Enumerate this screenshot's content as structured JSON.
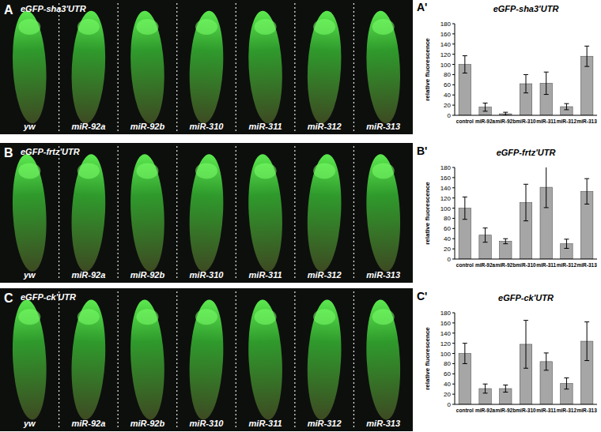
{
  "image_panels": [
    {
      "letter": "A",
      "title": "eGFP-sha3'UTR",
      "labels": [
        "yw",
        "miR-92a",
        "miR-92b",
        "miR-310",
        "miR-311",
        "miR-312",
        "miR-313"
      ]
    },
    {
      "letter": "B",
      "title": "eGFP-frtz'UTR",
      "labels": [
        "yw",
        "miR-92a",
        "miR-92b",
        "miR-310",
        "miR-311",
        "miR-312",
        "miR-313"
      ]
    },
    {
      "letter": "C",
      "title": "eGFP-ck'UTR",
      "labels": [
        "yw",
        "miR-92a",
        "miR-92b",
        "miR-310",
        "miR-311",
        "miR-312",
        "miR-313"
      ]
    }
  ],
  "chart_data": [
    {
      "type": "bar",
      "panel": "A'",
      "title": "eGFP-sha3'UTR",
      "y_label": "relative fluorescence",
      "categories": [
        "control",
        "miR-92a",
        "miR-92b",
        "miR-310",
        "miR-311",
        "miR-312",
        "miR-313"
      ],
      "values": [
        100,
        16,
        3,
        62,
        63,
        17,
        116
      ],
      "errors": [
        17,
        8,
        3,
        18,
        22,
        6,
        20
      ],
      "color": "#a6a6a6",
      "ylim": [
        0,
        180
      ],
      "yticks": [
        0,
        20,
        40,
        60,
        80,
        100,
        120,
        140,
        160,
        180
      ],
      "grid": false
    },
    {
      "type": "bar",
      "panel": "B'",
      "title": "eGFP-frtz'UTR",
      "y_label": "relative fluorescence",
      "categories": [
        "control",
        "miR-92a",
        "miR-92b",
        "miR-310",
        "miR-311",
        "miR-312",
        "miR-313"
      ],
      "values": [
        100,
        47,
        35,
        111,
        141,
        30,
        133
      ],
      "errors": [
        22,
        14,
        5,
        36,
        40,
        9,
        25
      ],
      "color": "#a6a6a6",
      "ylim": [
        0,
        180
      ],
      "yticks": [
        0,
        20,
        40,
        60,
        80,
        100,
        120,
        140,
        160,
        180
      ],
      "grid": false
    },
    {
      "type": "bar",
      "panel": "C'",
      "title": "eGFP-ck'UTR",
      "y_label": "relative fluorescence",
      "categories": [
        "control",
        "miR-92a",
        "miR-92b",
        "miR-310",
        "miR-311",
        "miR-312",
        "miR-313"
      ],
      "values": [
        100,
        31,
        31,
        118,
        84,
        41,
        124
      ],
      "errors": [
        20,
        9,
        7,
        47,
        17,
        11,
        38
      ],
      "color": "#a6a6a6",
      "ylim": [
        0,
        180
      ],
      "yticks": [
        0,
        20,
        40,
        60,
        80,
        100,
        120,
        140,
        160,
        180
      ],
      "grid": false
    }
  ]
}
